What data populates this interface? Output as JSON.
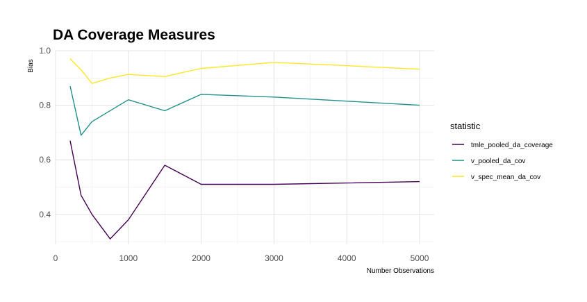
{
  "chart_data": {
    "type": "line",
    "title": "DA Coverage Measures",
    "xlabel": "Number Observations",
    "ylabel": "Bias",
    "xlim": [
      0,
      5200
    ],
    "ylim": [
      0.29,
      1.0
    ],
    "x_ticks": [
      0,
      1000,
      2000,
      3000,
      4000,
      5000
    ],
    "x_tick_labels": [
      "0",
      "1000",
      "2000",
      "3000",
      "4000",
      "5000"
    ],
    "x_minor_ticks": [
      500,
      1500,
      2500,
      3500,
      4500
    ],
    "y_ticks": [
      0.4,
      0.6,
      0.8,
      1.0
    ],
    "y_tick_labels": [
      "0.4",
      "0.6",
      "0.8",
      "1.0"
    ],
    "y_minor_ticks": [
      0.3,
      0.5,
      0.7,
      0.9
    ],
    "grid": true,
    "legend": {
      "title": "statistic",
      "position": "right"
    },
    "series": [
      {
        "name": "tmle_pooled_da_coverage",
        "color": "#440154",
        "x": [
          200,
          350,
          500,
          750,
          1000,
          1500,
          2000,
          3000,
          4000,
          5000
        ],
        "y": [
          0.67,
          0.47,
          0.4,
          0.31,
          0.38,
          0.58,
          0.51,
          0.51,
          0.515,
          0.52
        ]
      },
      {
        "name": "v_pooled_da_cov",
        "color": "#21908C",
        "x": [
          200,
          350,
          500,
          1000,
          1500,
          2000,
          3000,
          4000,
          5000
        ],
        "y": [
          0.87,
          0.69,
          0.74,
          0.82,
          0.78,
          0.84,
          0.83,
          0.815,
          0.8
        ]
      },
      {
        "name": "v_spec_mean_da_cov",
        "color": "#FDE725",
        "x": [
          200,
          350,
          500,
          750,
          1000,
          1500,
          2000,
          3000,
          4000,
          5000
        ],
        "y": [
          0.97,
          0.93,
          0.88,
          0.9,
          0.913,
          0.905,
          0.935,
          0.957,
          0.945,
          0.932
        ]
      }
    ]
  }
}
